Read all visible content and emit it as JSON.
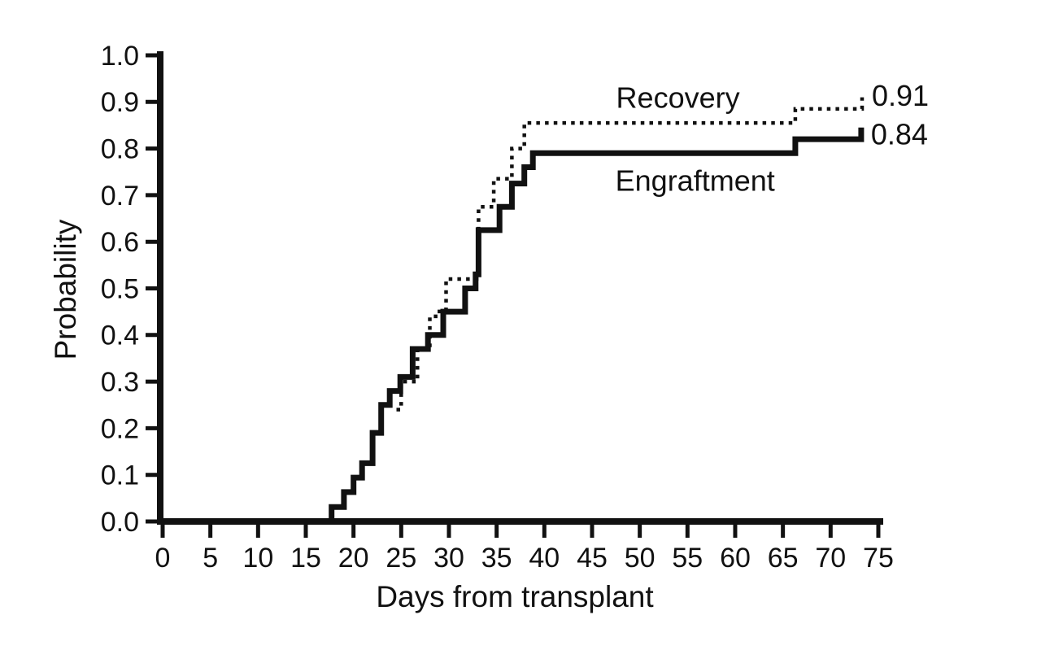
{
  "figure": {
    "background": "#ffffff",
    "ink": "#111111"
  },
  "chart_data": {
    "type": "line",
    "subtype": "kaplan-meier-step",
    "title": "",
    "xlabel": "Days from transplant",
    "ylabel": "Probability",
    "xlim": [
      0,
      75
    ],
    "ylim": [
      0.0,
      1.0
    ],
    "x_ticks": [
      0,
      5,
      10,
      15,
      20,
      25,
      30,
      35,
      40,
      45,
      50,
      55,
      60,
      65,
      70,
      75
    ],
    "y_tick_labels": [
      "0.0",
      "0.1",
      "0.2",
      "0.3",
      "0.4",
      "0.5",
      "0.6",
      "0.7",
      "0.8",
      "0.9",
      "1.0"
    ],
    "grid": false,
    "legend_position": "inline-annotations",
    "series": [
      {
        "name": "Recovery",
        "line_style": "dotted",
        "color": "#111111",
        "final_value": 0.91,
        "final_label": "0.91",
        "label_anchor": {
          "day": 54,
          "prob": 0.909
        },
        "points": [
          [
            24.5,
            0.24
          ],
          [
            25.0,
            0.3
          ],
          [
            26.7,
            0.37
          ],
          [
            28.0,
            0.44
          ],
          [
            29.0,
            0.455
          ],
          [
            29.7,
            0.52
          ],
          [
            33.1,
            0.675
          ],
          [
            34.7,
            0.735
          ],
          [
            36.6,
            0.8
          ],
          [
            37.9,
            0.855
          ],
          [
            66.3,
            0.885
          ],
          [
            73.3,
            0.91
          ]
        ]
      },
      {
        "name": "Engraftment",
        "line_style": "solid",
        "color": "#111111",
        "final_value": 0.84,
        "final_label": "0.84",
        "label_anchor": {
          "day": 55.8,
          "prob": 0.731
        },
        "points": [
          [
            17.7,
            0.0
          ],
          [
            17.7,
            0.031
          ],
          [
            19.0,
            0.063
          ],
          [
            20.0,
            0.094
          ],
          [
            20.9,
            0.125
          ],
          [
            22.0,
            0.19
          ],
          [
            22.9,
            0.25
          ],
          [
            23.8,
            0.28
          ],
          [
            24.9,
            0.31
          ],
          [
            26.2,
            0.37
          ],
          [
            27.8,
            0.4
          ],
          [
            29.4,
            0.45
          ],
          [
            31.7,
            0.5
          ],
          [
            32.8,
            0.53
          ],
          [
            33.1,
            0.625
          ],
          [
            35.3,
            0.675
          ],
          [
            36.6,
            0.725
          ],
          [
            37.9,
            0.76
          ],
          [
            38.8,
            0.79
          ],
          [
            66.3,
            0.82
          ],
          [
            73.2,
            0.845
          ]
        ]
      }
    ]
  }
}
